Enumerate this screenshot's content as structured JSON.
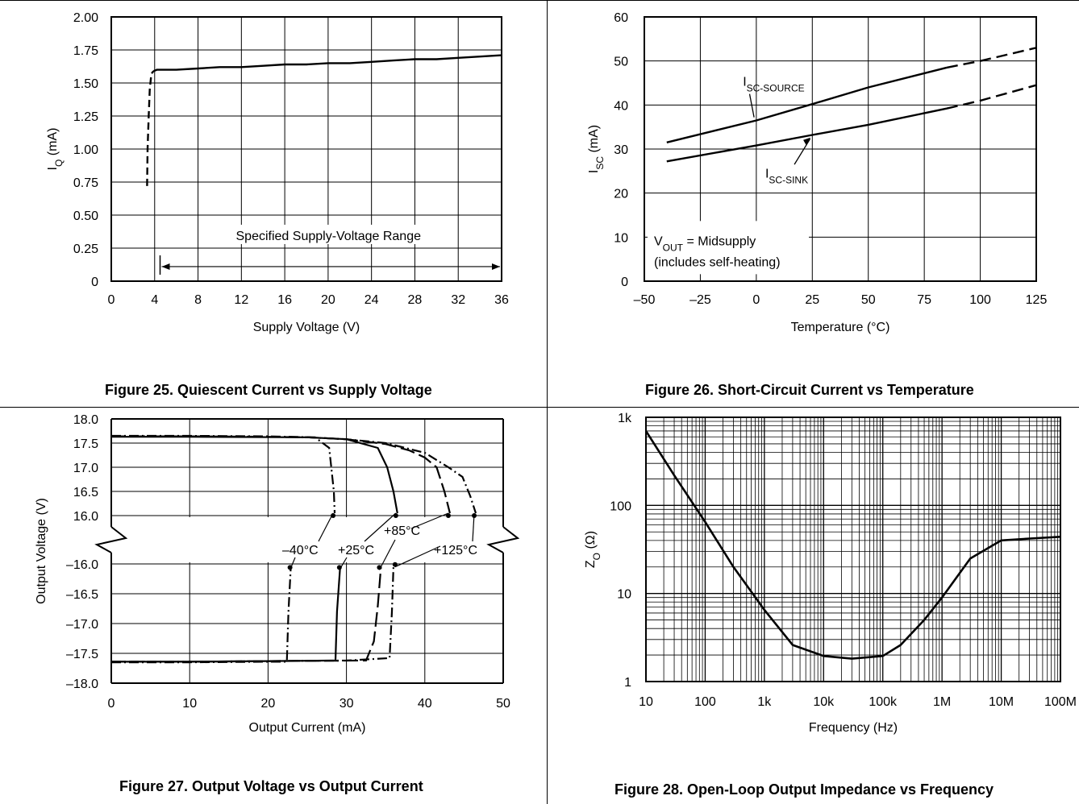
{
  "chart_data": [
    {
      "type": "line",
      "caption": "Figure 25.  Quiescent Current vs Supply Voltage",
      "xlabel": "Supply Voltage (V)",
      "ylabel": "IQ (mA)",
      "ylabel_parts": [
        "I",
        "Q",
        " (mA)"
      ],
      "xlim": [
        0,
        36
      ],
      "ylim": [
        0,
        2
      ],
      "xticks": [
        0,
        4,
        8,
        12,
        16,
        20,
        24,
        28,
        32,
        36
      ],
      "xtick_labels": [
        "0",
        "4",
        "8",
        "12",
        "16",
        "20",
        "24",
        "28",
        "32",
        "36"
      ],
      "yticks": [
        0,
        0.25,
        0.5,
        0.75,
        1.0,
        1.25,
        1.5,
        1.75,
        2.0
      ],
      "ytick_labels": [
        "0",
        "0.25",
        "0.50",
        "0.75",
        "1.00",
        "1.25",
        "1.50",
        "1.75",
        "2.00"
      ],
      "grid": true,
      "series": [
        {
          "style": "dashed",
          "x": [
            3.3,
            3.35,
            3.45,
            3.55,
            3.7,
            3.9
          ],
          "y": [
            0.72,
            1.0,
            1.25,
            1.45,
            1.57,
            1.59
          ]
        },
        {
          "style": "solid",
          "x": [
            3.9,
            4.2,
            6,
            8,
            10,
            12,
            14,
            16,
            18,
            20,
            22,
            24,
            26,
            28,
            30,
            32,
            34,
            36
          ],
          "y": [
            1.59,
            1.6,
            1.6,
            1.61,
            1.62,
            1.62,
            1.63,
            1.64,
            1.64,
            1.65,
            1.65,
            1.66,
            1.67,
            1.68,
            1.68,
            1.69,
            1.7,
            1.71
          ]
        }
      ],
      "annotation": {
        "text": "Specified Supply-Voltage Range",
        "from": 4.5,
        "to": 36,
        "y": 0.11
      }
    },
    {
      "type": "line",
      "caption": "Figure 26.  Short-Circuit Current vs Temperature",
      "xlabel": "Temperature (°C)",
      "ylabel": "ISC (mA)",
      "ylabel_parts": [
        "I",
        "SC",
        " (mA)"
      ],
      "xlim": [
        -50,
        125
      ],
      "ylim": [
        0,
        60
      ],
      "xticks": [
        -50,
        -25,
        0,
        25,
        50,
        75,
        100,
        125
      ],
      "xtick_labels": [
        "–50",
        "–25",
        "0",
        "25",
        "50",
        "75",
        "100",
        "125"
      ],
      "yticks": [
        0,
        10,
        20,
        30,
        40,
        50,
        60
      ],
      "ytick_labels": [
        "0",
        "10",
        "20",
        "30",
        "40",
        "50",
        "60"
      ],
      "grid": true,
      "series": [
        {
          "name": "ISC-SOURCE",
          "name_parts": [
            "I",
            "SC-SOURCE"
          ],
          "x": [
            -40,
            0,
            25,
            50,
            85
          ],
          "y": [
            31.5,
            36.5,
            40.2,
            44,
            48.5
          ],
          "dashed_x": [
            85,
            100,
            125
          ],
          "dashed_y": [
            48.5,
            50,
            53
          ]
        },
        {
          "name": "ISC-SINK",
          "name_parts": [
            "I",
            "SC-SINK"
          ],
          "x": [
            -40,
            0,
            25,
            50,
            85
          ],
          "y": [
            27.2,
            30.8,
            33.2,
            35.5,
            39.2
          ],
          "dashed_x": [
            85,
            100,
            125
          ],
          "dashed_y": [
            39.2,
            41,
            44.5
          ]
        }
      ],
      "note_lines": [
        [
          "V",
          "OUT",
          " = Midsupply"
        ],
        [
          "(includes self-heating)"
        ]
      ]
    },
    {
      "type": "line",
      "caption": "Figure 27. Output Voltage vs Output Current",
      "xlabel": "Output Current (mA)",
      "ylabel": "Output Voltage (V)",
      "xlim": [
        0,
        50
      ],
      "xticks": [
        0,
        10,
        20,
        30,
        40,
        50
      ],
      "xtick_labels": [
        "0",
        "10",
        "20",
        "30",
        "40",
        "50"
      ],
      "upper_ylim": [
        16,
        18
      ],
      "upper_yticks": [
        16.0,
        16.5,
        17.0,
        17.5,
        18.0
      ],
      "upper_ytick_labels": [
        "16.0",
        "16.5",
        "17.0",
        "17.5",
        "18.0"
      ],
      "lower_ylim": [
        -18,
        -16
      ],
      "lower_yticks": [
        -16.0,
        -16.5,
        -17.0,
        -17.5,
        -18.0
      ],
      "lower_ytick_labels": [
        "–16.0",
        "–16.5",
        "–17.0",
        "–17.5",
        "–18.0"
      ],
      "grid": true,
      "series": [
        {
          "name": "–40°C",
          "style": "dash-dot",
          "upper_x": [
            0,
            10,
            22.5,
            26,
            27.8,
            28.4,
            28.5
          ],
          "upper_y": [
            17.64,
            17.64,
            17.63,
            17.62,
            17.4,
            16.5,
            16.05
          ],
          "lower_x": [
            0,
            10,
            20,
            22.4,
            22.6,
            22.9
          ],
          "lower_y": [
            -17.65,
            -17.65,
            -17.64,
            -17.64,
            -16.8,
            -16.05
          ]
        },
        {
          "name": "+25°C",
          "style": "solid",
          "upper_x": [
            0,
            10,
            25,
            30,
            34,
            35.2,
            36,
            36.5
          ],
          "upper_y": [
            17.63,
            17.63,
            17.62,
            17.58,
            17.4,
            17.0,
            16.5,
            16.05
          ],
          "lower_x": [
            0,
            10,
            20,
            28.6,
            28.8,
            29.2
          ],
          "lower_y": [
            -17.64,
            -17.64,
            -17.63,
            -17.62,
            -16.8,
            -16.05
          ]
        },
        {
          "name": "+85°C",
          "style": "long-dash",
          "upper_x": [
            0,
            10,
            20,
            25,
            30,
            35,
            38,
            40,
            41.5,
            42.5,
            43.2
          ],
          "upper_y": [
            17.64,
            17.64,
            17.63,
            17.62,
            17.58,
            17.48,
            17.35,
            17.2,
            17.0,
            16.5,
            16.05
          ],
          "lower_x": [
            0,
            10,
            20,
            32.5,
            33.5,
            34,
            34.4
          ],
          "lower_y": [
            -17.64,
            -17.64,
            -17.63,
            -17.62,
            -17.3,
            -16.7,
            -16.05
          ]
        },
        {
          "name": "+125°C",
          "style": "dash-dot",
          "upper_x": [
            0,
            10,
            20,
            25,
            30,
            35,
            40,
            43,
            44.8,
            45.8,
            46.5
          ],
          "upper_y": [
            17.65,
            17.65,
            17.64,
            17.62,
            17.58,
            17.5,
            17.3,
            17.0,
            16.8,
            16.4,
            16.05
          ],
          "lower_x": [
            0,
            10,
            20,
            30,
            35.5,
            35.8,
            36
          ],
          "lower_y": [
            -17.64,
            -17.64,
            -17.63,
            -17.62,
            -17.58,
            -16.8,
            -16.05
          ]
        }
      ]
    },
    {
      "type": "line",
      "caption": "Figure 28.  Open-Loop Output Impedance vs Frequency",
      "xlabel": "Frequency (Hz)",
      "ylabel": "ZO (Ω)",
      "ylabel_parts": [
        "Z",
        "O",
        " (Ω)"
      ],
      "xscale": "log",
      "yscale": "log",
      "xlim": [
        10,
        100000000
      ],
      "ylim": [
        1,
        1000
      ],
      "xticks": [
        10,
        100,
        1000,
        10000,
        100000,
        1000000,
        10000000,
        100000000
      ],
      "xtick_labels": [
        "10",
        "100",
        "1k",
        "10k",
        "100k",
        "1M",
        "10M",
        "100M"
      ],
      "yticks": [
        1,
        10,
        100,
        1000
      ],
      "ytick_labels": [
        "1",
        "10",
        "100",
        "1k"
      ],
      "grid": true,
      "series": [
        {
          "x": [
            10,
            30,
            100,
            300,
            1000,
            3000,
            10000,
            30000,
            100000,
            200000,
            500000,
            1000000,
            3000000,
            10000000,
            30000000,
            100000000
          ],
          "y": [
            700,
            220,
            65,
            20,
            6.5,
            2.6,
            1.95,
            1.82,
            1.95,
            2.6,
            5.0,
            9.0,
            25,
            40,
            42,
            44
          ]
        }
      ]
    }
  ]
}
